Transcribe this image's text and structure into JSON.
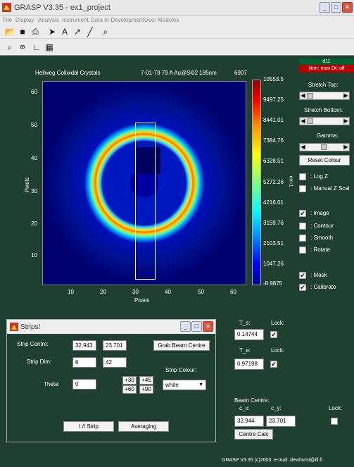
{
  "window": {
    "title": "GRASP V3.35 - ex1_project"
  },
  "menu": [
    "File",
    "Display",
    "Analysis",
    "Instrument",
    "Data",
    "In-Development",
    "User Modules"
  ],
  "plot": {
    "header_left": "Hellweg  Colloidal Crystals",
    "header_mid": "7-01-79 79 A Au@Si02 185nm",
    "header_right": "6907",
    "xlabel": "Pixels",
    "ylabel": "Pixels",
    "xticks": [
      "10",
      "20",
      "30",
      "40",
      "50",
      "60"
    ],
    "yticks": [
      "60",
      "50",
      "40",
      "30",
      "20",
      "10"
    ]
  },
  "colorbar": {
    "ticks": [
      "10553.5",
      "9497.25",
      "8441.01",
      "7384.76",
      "6328.51",
      "5272.26",
      "4216.01",
      "3159.76",
      "2103.51",
      "1047.26",
      "-8.9875"
    ],
    "unit_label": "cm-1"
  },
  "instrument": {
    "name": "d11",
    "status": "Nrm: mon  Dt: off"
  },
  "controls": {
    "stretch_top_label": "Stretch Top:",
    "stretch_bottom_label": "Stretch Bottom:",
    "gamma_label": "Gamma:",
    "reset_colour": "Reset Colour",
    "checkboxes": [
      {
        "label": ": Log Z",
        "checked": false
      },
      {
        "label": ": Manual Z Scal",
        "checked": false
      },
      {
        "label": ": Image",
        "checked": true
      },
      {
        "label": ": Contour",
        "checked": false
      },
      {
        "label": ": Smooth",
        "checked": false
      },
      {
        "label": ": Rotate",
        "checked": false
      },
      {
        "label": ": Mask",
        "checked": true
      },
      {
        "label": ": Calibrate",
        "checked": true
      }
    ]
  },
  "transmission": {
    "ts_label": "T_s:",
    "ts_value": "0.14744",
    "te_label": "T_e:",
    "te_value": "0.97198",
    "lock_label": "Lock:"
  },
  "beam_centre": {
    "label": "Beam Centre:",
    "cx_label": "c_x:",
    "cy_label": "c_y:",
    "cx": "32.944",
    "cy": "23.701",
    "lock_label": "Lock:",
    "calc_button": "Centre Calc"
  },
  "strips": {
    "title": "Strips!",
    "strip_centre_label": "Strip Centre:",
    "centre_x": "32.943",
    "centre_y": "23.701",
    "grab_button": "Grab Beam Centre",
    "strip_dim_label": "Strip Dim:",
    "dim_x": "6",
    "dim_y": "42",
    "strip_colour_label": "Strip Colour:",
    "colour_value": "white",
    "theta_label": "Theta:",
    "theta_value": "0",
    "plus30": "+30",
    "plus45": "+45",
    "plus60": "+60",
    "plus90": "+90",
    "istrip_button": "I // Strip",
    "averaging_button": "Averaging"
  },
  "footer": "GRASP V3.35 (c)2003. e-mail: dewhurst@ill.fr"
}
